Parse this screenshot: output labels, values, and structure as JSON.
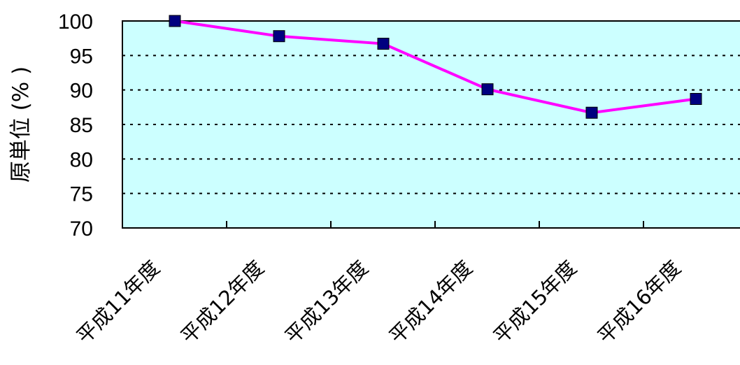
{
  "chart_data": {
    "type": "line",
    "title": "",
    "xlabel": "",
    "ylabel": "原単位 (% )",
    "categories": [
      "平成11年度",
      "平成12年度",
      "平成13年度",
      "平成14年度",
      "平成15年度",
      "平成16年度"
    ],
    "series": [
      {
        "values": [
          100,
          97.8,
          96.7,
          90.1,
          86.7,
          88.7
        ]
      }
    ],
    "ylim": [
      70,
      100
    ],
    "yticks": [
      "100",
      "95",
      "90",
      "85",
      "80",
      "75",
      "70"
    ],
    "grid": true,
    "legend": "none",
    "colors": {
      "plot_background": "#ccffff",
      "line": "#ff00ff",
      "marker": "#000080",
      "grid": "#000000"
    }
  }
}
